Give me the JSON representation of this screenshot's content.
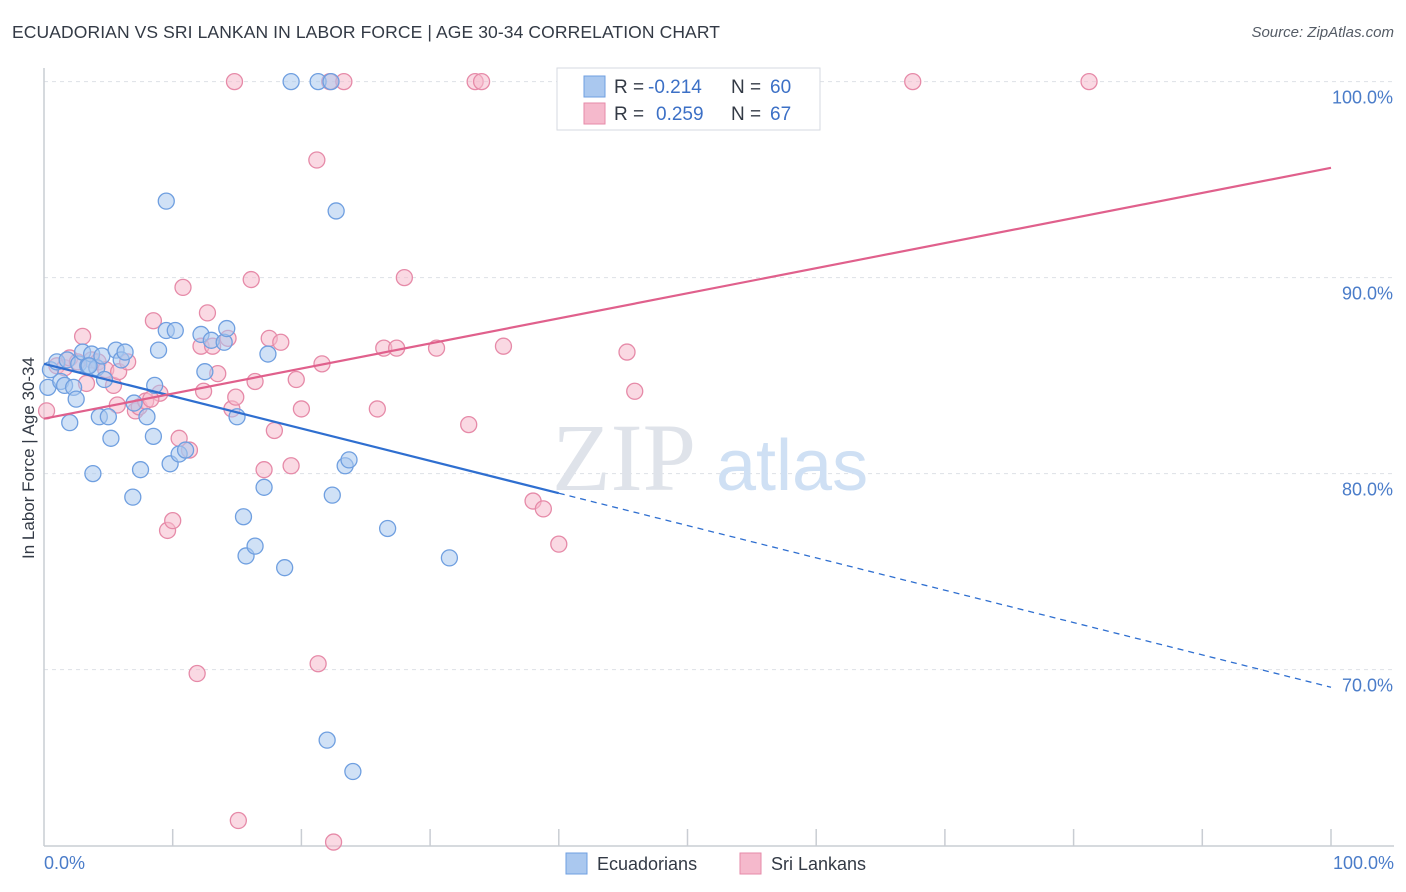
{
  "title": "ECUADORIAN VS SRI LANKAN IN LABOR FORCE | AGE 30-34 CORRELATION CHART",
  "source": "Source: ZipAtlas.com",
  "watermark": {
    "zip": "ZIP",
    "atlas": "atlas"
  },
  "colors": {
    "blue_fill": "#aac8ef",
    "blue_stroke": "#6f9fe0",
    "blue_line": "#2f6fd0",
    "pink_fill": "#f5b9cc",
    "pink_stroke": "#e68aa8",
    "pink_line": "#e0608c",
    "tick": "#4a7cc9",
    "grid": "#dde1e6"
  },
  "legend": {
    "r_label": "R =",
    "n_label": "N =",
    "series": [
      {
        "name": "Ecuadorians",
        "r": "-0.214",
        "n": "60"
      },
      {
        "name": "Sri Lankans",
        "r": "0.259",
        "n": "67"
      }
    ]
  },
  "chart_data": {
    "type": "scatter",
    "title": "ECUADORIAN VS SRI LANKAN IN LABOR FORCE | AGE 30-34 CORRELATION CHART",
    "xlabel": "",
    "ylabel": "In Labor Force | Age 30-34",
    "xlim": [
      0,
      100
    ],
    "ylim": [
      61,
      101
    ],
    "x_tick_labels": [
      "0.0%",
      "100.0%"
    ],
    "y_ticks": [
      70,
      80,
      90,
      100
    ],
    "y_tick_labels": [
      "70.0%",
      "80.0%",
      "90.0%",
      "100.0%"
    ],
    "grid": true,
    "series": [
      {
        "name": "Ecuadorians",
        "color": "#aac8ef",
        "points": [
          [
            0.3,
            84.4
          ],
          [
            0.5,
            85.3
          ],
          [
            1.0,
            85.7
          ],
          [
            1.3,
            84.7
          ],
          [
            1.6,
            84.5
          ],
          [
            1.8,
            85.8
          ],
          [
            2.0,
            82.6
          ],
          [
            2.3,
            84.4
          ],
          [
            2.5,
            83.8
          ],
          [
            2.7,
            85.6
          ],
          [
            3.0,
            86.2
          ],
          [
            3.4,
            85.5
          ],
          [
            3.7,
            86.1
          ],
          [
            4.1,
            85.4
          ],
          [
            4.5,
            86.0
          ],
          [
            4.3,
            82.9
          ],
          [
            4.7,
            84.8
          ],
          [
            5.0,
            82.9
          ],
          [
            5.6,
            86.3
          ],
          [
            6.0,
            85.8
          ],
          [
            6.3,
            86.2
          ],
          [
            7.0,
            83.6
          ],
          [
            7.5,
            80.2
          ],
          [
            8.0,
            82.9
          ],
          [
            8.5,
            81.9
          ],
          [
            8.9,
            86.3
          ],
          [
            8.6,
            84.5
          ],
          [
            9.5,
            87.3
          ],
          [
            9.8,
            80.5
          ],
          [
            10.2,
            87.3
          ],
          [
            10.5,
            81.0
          ],
          [
            11.0,
            81.2
          ],
          [
            12.2,
            87.1
          ],
          [
            12.5,
            85.2
          ],
          [
            13.0,
            86.8
          ],
          [
            14.0,
            86.7
          ],
          [
            14.2,
            87.4
          ],
          [
            15.0,
            82.9
          ],
          [
            15.5,
            77.8
          ],
          [
            15.7,
            75.8
          ],
          [
            16.4,
            76.3
          ],
          [
            17.1,
            79.3
          ],
          [
            17.4,
            86.1
          ],
          [
            18.7,
            75.2
          ],
          [
            22.4,
            78.9
          ],
          [
            22.7,
            93.4
          ],
          [
            23.4,
            80.4
          ],
          [
            23.7,
            80.7
          ],
          [
            26.7,
            77.2
          ],
          [
            31.5,
            75.7
          ],
          [
            22.0,
            66.4
          ],
          [
            24.0,
            64.8
          ],
          [
            9.5,
            93.9
          ],
          [
            19.2,
            100.0
          ],
          [
            21.3,
            100.0
          ],
          [
            22.3,
            100.0
          ],
          [
            3.5,
            85.5
          ],
          [
            5.2,
            81.8
          ],
          [
            3.8,
            80.0
          ],
          [
            6.9,
            78.8
          ]
        ]
      },
      {
        "name": "Sri Lankans",
        "color": "#f5b9cc",
        "points": [
          [
            0.2,
            83.2
          ],
          [
            1.0,
            85.5
          ],
          [
            1.6,
            85.4
          ],
          [
            2.0,
            85.9
          ],
          [
            2.6,
            85.7
          ],
          [
            3.0,
            87.0
          ],
          [
            3.3,
            84.6
          ],
          [
            3.7,
            85.8
          ],
          [
            4.2,
            85.7
          ],
          [
            4.8,
            85.3
          ],
          [
            5.4,
            84.5
          ],
          [
            5.8,
            85.2
          ],
          [
            6.5,
            85.7
          ],
          [
            7.1,
            83.2
          ],
          [
            7.4,
            83.4
          ],
          [
            7.9,
            83.7
          ],
          [
            8.5,
            87.8
          ],
          [
            9.0,
            84.1
          ],
          [
            9.6,
            77.1
          ],
          [
            10.0,
            77.6
          ],
          [
            10.5,
            81.8
          ],
          [
            10.8,
            89.5
          ],
          [
            11.3,
            81.2
          ],
          [
            12.2,
            86.5
          ],
          [
            12.7,
            88.2
          ],
          [
            13.1,
            86.5
          ],
          [
            13.5,
            85.1
          ],
          [
            14.3,
            86.9
          ],
          [
            14.6,
            83.3
          ],
          [
            14.9,
            83.9
          ],
          [
            16.1,
            89.9
          ],
          [
            16.4,
            84.7
          ],
          [
            17.1,
            80.2
          ],
          [
            17.5,
            86.9
          ],
          [
            17.9,
            82.2
          ],
          [
            18.4,
            86.7
          ],
          [
            19.2,
            80.4
          ],
          [
            19.6,
            84.8
          ],
          [
            20.0,
            83.3
          ],
          [
            21.2,
            96.0
          ],
          [
            21.6,
            85.6
          ],
          [
            22.2,
            100.0
          ],
          [
            23.3,
            100.0
          ],
          [
            25.9,
            83.3
          ],
          [
            26.4,
            86.4
          ],
          [
            27.4,
            86.4
          ],
          [
            28.0,
            90.0
          ],
          [
            30.5,
            86.4
          ],
          [
            33.0,
            82.5
          ],
          [
            33.5,
            100.0
          ],
          [
            34.0,
            100.0
          ],
          [
            35.7,
            86.5
          ],
          [
            38.0,
            78.6
          ],
          [
            38.8,
            78.2
          ],
          [
            40.0,
            76.4
          ],
          [
            45.3,
            86.2
          ],
          [
            45.9,
            84.2
          ],
          [
            11.9,
            69.8
          ],
          [
            21.3,
            70.3
          ],
          [
            15.1,
            62.3
          ],
          [
            22.5,
            61.2
          ],
          [
            14.8,
            100.0
          ],
          [
            67.5,
            100.0
          ],
          [
            81.2,
            100.0
          ],
          [
            5.7,
            83.5
          ],
          [
            8.3,
            83.8
          ],
          [
            12.4,
            84.2
          ]
        ]
      }
    ],
    "trendlines": [
      {
        "series": "Ecuadorians",
        "x0": 0,
        "y0": 85.6,
        "x1": 40.0,
        "y1": 79.0,
        "dashed_to_x": 100,
        "dashed_to_y": 69.1
      },
      {
        "series": "Sri Lankans",
        "x0": 0,
        "y0": 82.8,
        "x1": 100,
        "y1": 95.6
      }
    ]
  }
}
